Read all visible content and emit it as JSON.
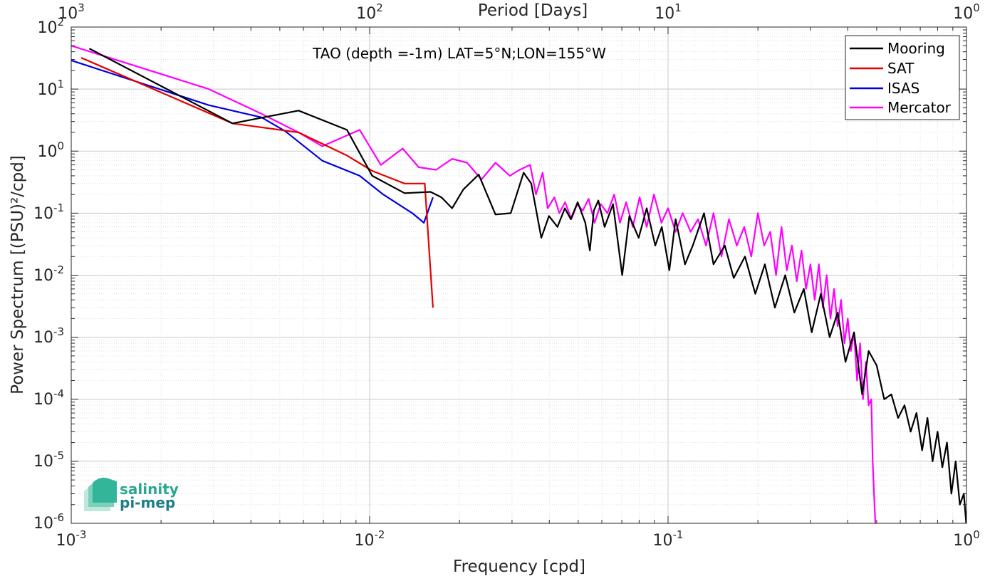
{
  "chart_data": {
    "type": "line",
    "title": "TAO (depth =-1m) LAT=5°N;LON=155°W",
    "xlabel": "Frequency [cpd]",
    "ylabel": "Power Spectrum [(PSU)²/cpd]",
    "top_xlabel": "Period [Days]",
    "xscale": "log",
    "yscale": "log",
    "xlim": [
      0.001,
      1
    ],
    "ylim": [
      1e-06,
      100
    ],
    "grid": true,
    "legend_position": "top-right",
    "x_tick_labels": [
      {
        "base": "10",
        "exp": "-3"
      },
      {
        "base": "10",
        "exp": "-2"
      },
      {
        "base": "10",
        "exp": "-1"
      },
      {
        "base": "10",
        "exp": "0"
      }
    ],
    "top_tick_labels": [
      {
        "base": "10",
        "exp": "3"
      },
      {
        "base": "10",
        "exp": "2"
      },
      {
        "base": "10",
        "exp": "1"
      },
      {
        "base": "10",
        "exp": "0"
      }
    ],
    "y_tick_labels": [
      {
        "base": "10",
        "exp": "2"
      },
      {
        "base": "10",
        "exp": "1"
      },
      {
        "base": "10",
        "exp": "0"
      },
      {
        "base": "10",
        "exp": "-1"
      },
      {
        "base": "10",
        "exp": "-2"
      },
      {
        "base": "10",
        "exp": "-3"
      },
      {
        "base": "10",
        "exp": "-4"
      },
      {
        "base": "10",
        "exp": "-5"
      },
      {
        "base": "10",
        "exp": "-6"
      }
    ],
    "series": [
      {
        "name": "Mooring",
        "color": "#000000",
        "x": [
          0.00115,
          0.00347,
          0.00578,
          0.00839,
          0.0102,
          0.0131,
          0.016,
          0.0174,
          0.0189,
          0.0206,
          0.0232,
          0.0264,
          0.0297,
          0.0328,
          0.0348,
          0.0376,
          0.0399,
          0.0426,
          0.0451,
          0.0472,
          0.0498,
          0.0528,
          0.0547,
          0.0564,
          0.0584,
          0.0613,
          0.0654,
          0.0702,
          0.0742,
          0.0797,
          0.0848,
          0.0906,
          0.0953,
          0.101,
          0.106,
          0.114,
          0.121,
          0.132,
          0.142,
          0.155,
          0.166,
          0.181,
          0.196,
          0.211,
          0.228,
          0.247,
          0.265,
          0.285,
          0.303,
          0.325,
          0.348,
          0.37,
          0.393,
          0.42,
          0.447,
          0.47,
          0.5,
          0.53,
          0.56,
          0.59,
          0.62,
          0.65,
          0.68,
          0.71,
          0.74,
          0.77,
          0.8,
          0.83,
          0.86,
          0.89,
          0.92,
          0.95,
          0.98,
          0.998
        ],
        "y": [
          45,
          2.8,
          4.5,
          2.2,
          0.4,
          0.21,
          0.22,
          0.18,
          0.12,
          0.24,
          0.42,
          0.095,
          0.1,
          0.45,
          0.3,
          0.04,
          0.09,
          0.06,
          0.12,
          0.08,
          0.15,
          0.07,
          0.025,
          0.11,
          0.16,
          0.06,
          0.14,
          0.01,
          0.09,
          0.04,
          0.12,
          0.03,
          0.06,
          0.012,
          0.08,
          0.015,
          0.03,
          0.1,
          0.015,
          0.03,
          0.009,
          0.02,
          0.005,
          0.015,
          0.003,
          0.01,
          0.0025,
          0.006,
          0.0012,
          0.005,
          0.001,
          0.0025,
          0.0004,
          0.0012,
          0.00012,
          0.0006,
          0.00035,
          0.0001,
          0.00012,
          5e-05,
          8e-05,
          3e-05,
          6e-05,
          1.5e-05,
          5e-05,
          1e-05,
          3e-05,
          8e-06,
          2e-05,
          3e-06,
          1e-05,
          2e-06,
          3e-06,
          1e-06
        ]
      },
      {
        "name": "SAT",
        "color": "#e50000",
        "x": [
          0.00108,
          0.00347,
          0.00578,
          0.00839,
          0.0102,
          0.0131,
          0.0153,
          0.0163
        ],
        "y": [
          32,
          2.8,
          2.0,
          0.85,
          0.48,
          0.3,
          0.3,
          0.003
        ]
      },
      {
        "name": "ISAS",
        "color": "#0000e0",
        "x": [
          0.001,
          0.00289,
          0.00434,
          0.00521,
          0.00694,
          0.00926,
          0.0111,
          0.0139,
          0.0152,
          0.0163
        ],
        "y": [
          29,
          5.5,
          3.5,
          2.1,
          0.7,
          0.4,
          0.2,
          0.1,
          0.07,
          0.18
        ]
      },
      {
        "name": "Mercator",
        "color": "#ff00ff",
        "x": [
          0.001,
          0.00289,
          0.00434,
          0.00578,
          0.00694,
          0.00926,
          0.0109,
          0.0129,
          0.0146,
          0.0167,
          0.0189,
          0.0212,
          0.0237,
          0.0264,
          0.0295,
          0.0318,
          0.0345,
          0.0361,
          0.038,
          0.0395,
          0.0416,
          0.0432,
          0.0452,
          0.0474,
          0.0496,
          0.0518,
          0.0542,
          0.0567,
          0.0595,
          0.0626,
          0.066,
          0.069,
          0.0724,
          0.0762,
          0.0803,
          0.0848,
          0.0897,
          0.095,
          0.1,
          0.106,
          0.112,
          0.119,
          0.126,
          0.134,
          0.142,
          0.151,
          0.16,
          0.17,
          0.18,
          0.19,
          0.2,
          0.21,
          0.22,
          0.23,
          0.24,
          0.25,
          0.26,
          0.27,
          0.28,
          0.29,
          0.3,
          0.31,
          0.32,
          0.33,
          0.34,
          0.35,
          0.36,
          0.37,
          0.38,
          0.39,
          0.4,
          0.41,
          0.42,
          0.43,
          0.44,
          0.45,
          0.46,
          0.47,
          0.48,
          0.485,
          0.49,
          0.495
        ],
        "y": [
          50,
          10,
          4,
          2,
          1.2,
          2.2,
          0.6,
          1.1,
          0.55,
          0.5,
          0.75,
          0.65,
          0.35,
          0.65,
          0.4,
          0.5,
          0.6,
          0.2,
          0.45,
          0.12,
          0.18,
          0.1,
          0.15,
          0.08,
          0.14,
          0.11,
          0.17,
          0.07,
          0.14,
          0.1,
          0.2,
          0.07,
          0.15,
          0.06,
          0.18,
          0.06,
          0.2,
          0.07,
          0.12,
          0.05,
          0.1,
          0.05,
          0.08,
          0.03,
          0.1,
          0.02,
          0.08,
          0.03,
          0.06,
          0.02,
          0.1,
          0.03,
          0.05,
          0.01,
          0.06,
          0.012,
          0.03,
          0.008,
          0.025,
          0.006,
          0.015,
          0.004,
          0.015,
          0.003,
          0.01,
          0.002,
          0.006,
          0.0015,
          0.004,
          0.0008,
          0.002,
          0.0006,
          0.0012,
          0.0002,
          0.0008,
          0.0001,
          0.0004,
          8e-05,
          0.0001,
          1e-05,
          3e-06,
          1e-06
        ]
      }
    ]
  },
  "logo": {
    "line1": "salinity",
    "line2": "pi-mep"
  }
}
